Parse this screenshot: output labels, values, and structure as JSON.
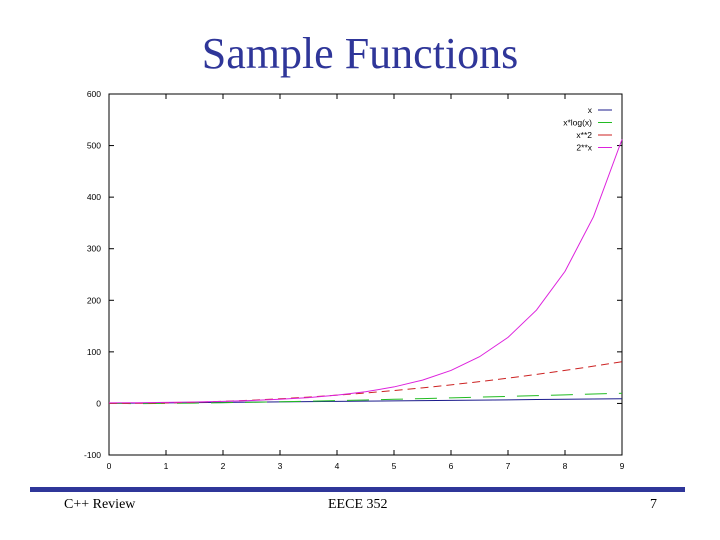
{
  "slide": {
    "title": "Sample Functions",
    "footer_left": "C++ Review",
    "footer_center": "EECE 352",
    "page_number": "7"
  },
  "colors": {
    "title": "#2f3699",
    "footer_bar": "#2f3699"
  },
  "chart_data": {
    "type": "line",
    "title": "",
    "xlabel": "",
    "ylabel": "",
    "xlim": [
      0,
      9
    ],
    "ylim": [
      -100,
      600
    ],
    "xticks": [
      "0",
      "1",
      "2",
      "3",
      "4",
      "5",
      "6",
      "7",
      "8",
      "9"
    ],
    "yticks": [
      "600",
      "500",
      "400",
      "300",
      "200",
      "100",
      "0",
      "-100"
    ],
    "grid": false,
    "legend_position": "top-right",
    "x": [
      0,
      0.5,
      1,
      1.5,
      2,
      2.5,
      3,
      3.5,
      4,
      4.5,
      5,
      5.5,
      6,
      6.5,
      7,
      7.5,
      8,
      8.5,
      9
    ],
    "series": [
      {
        "name": "x",
        "color": "#1c1c8c",
        "dash": "solid",
        "values": [
          0,
          0.5,
          1,
          1.5,
          2,
          2.5,
          3,
          3.5,
          4,
          4.5,
          5,
          5.5,
          6,
          6.5,
          7,
          7.5,
          8,
          8.5,
          9
        ]
      },
      {
        "name": "x*log(x)",
        "color": "#22bb22",
        "dash": "long",
        "values": [
          0,
          -0.35,
          0,
          0.61,
          1.39,
          2.29,
          3.3,
          4.38,
          5.55,
          6.77,
          8.05,
          9.38,
          10.75,
          12.17,
          13.62,
          15.11,
          16.64,
          18.19,
          19.78
        ]
      },
      {
        "name": "x**2",
        "color": "#cc2222",
        "dash": "dashed",
        "values": [
          0,
          0.25,
          1,
          2.25,
          4,
          6.25,
          9,
          12.25,
          16,
          20.25,
          25,
          30.25,
          36,
          42.25,
          49,
          56.25,
          64,
          72.25,
          81
        ]
      },
      {
        "name": "2**x",
        "color": "#dd22dd",
        "dash": "solid",
        "values": [
          1,
          1.41,
          2,
          2.83,
          4,
          5.66,
          8,
          11.31,
          16,
          22.63,
          32,
          45.25,
          64,
          90.51,
          128,
          181.02,
          256,
          362.04,
          512
        ]
      }
    ]
  }
}
